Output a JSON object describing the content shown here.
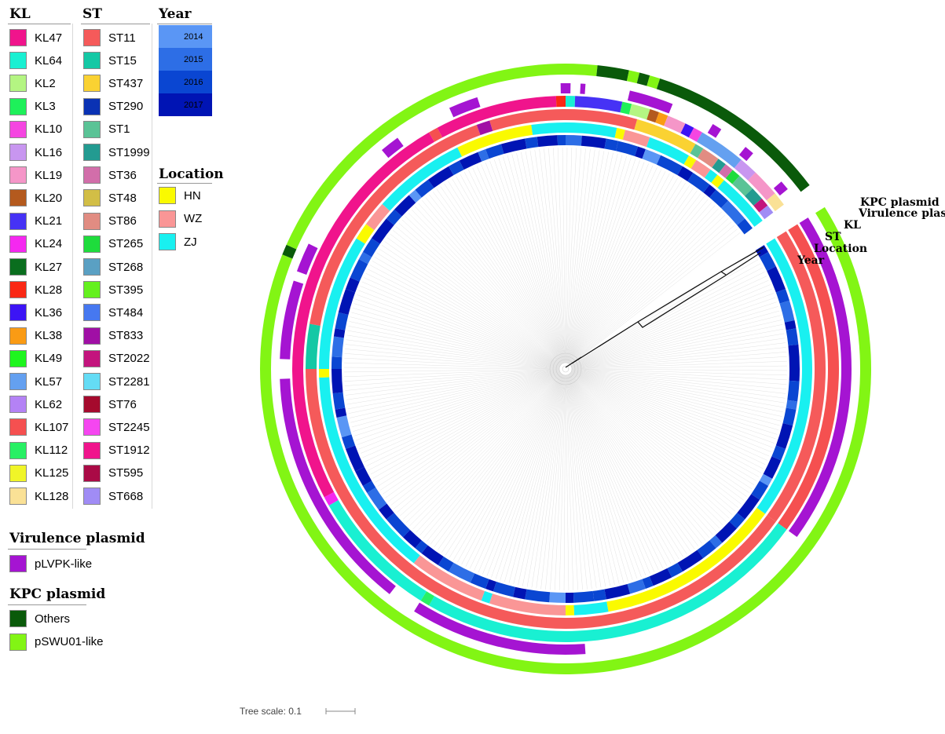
{
  "legend": {
    "kl": {
      "title": "KL",
      "items": [
        {
          "label": "KL47",
          "color": "#f0148c"
        },
        {
          "label": "KL64",
          "color": "#19f0d2"
        },
        {
          "label": "KL2",
          "color": "#b4f582"
        },
        {
          "label": "KL3",
          "color": "#1ef05a"
        },
        {
          "label": "KL10",
          "color": "#f546e1"
        },
        {
          "label": "KL16",
          "color": "#c896f0"
        },
        {
          "label": "KL19",
          "color": "#f596c8"
        },
        {
          "label": "KL20",
          "color": "#b45a1e"
        },
        {
          "label": "KL21",
          "color": "#4632f5"
        },
        {
          "label": "KL24",
          "color": "#f528f0"
        },
        {
          "label": "KL27",
          "color": "#0a6e1e"
        },
        {
          "label": "KL28",
          "color": "#fa2814"
        },
        {
          "label": "KL36",
          "color": "#3c14f5"
        },
        {
          "label": "KL38",
          "color": "#fa9b14"
        },
        {
          "label": "KL49",
          "color": "#1ef51e"
        },
        {
          "label": "KL57",
          "color": "#64a0f0"
        },
        {
          "label": "KL62",
          "color": "#b482f5"
        },
        {
          "label": "KL107",
          "color": "#f55050"
        },
        {
          "label": "KL112",
          "color": "#28f064"
        },
        {
          "label": "KL125",
          "color": "#f0f528"
        },
        {
          "label": "KL128",
          "color": "#fae196"
        }
      ]
    },
    "st": {
      "title": "ST",
      "items": [
        {
          "label": "ST11",
          "color": "#f55a5a"
        },
        {
          "label": "ST15",
          "color": "#14c8a5"
        },
        {
          "label": "ST437",
          "color": "#fad232"
        },
        {
          "label": "ST290",
          "color": "#0a32b4"
        },
        {
          "label": "ST1",
          "color": "#5ac396"
        },
        {
          "label": "ST1999",
          "color": "#239b91"
        },
        {
          "label": "ST36",
          "color": "#d26eaa"
        },
        {
          "label": "ST48",
          "color": "#d2be46"
        },
        {
          "label": "ST86",
          "color": "#e18c82"
        },
        {
          "label": "ST265",
          "color": "#1edc3c"
        },
        {
          "label": "ST268",
          "color": "#5aa0c3"
        },
        {
          "label": "ST395",
          "color": "#64f01e"
        },
        {
          "label": "ST484",
          "color": "#4678f0"
        },
        {
          "label": "ST833",
          "color": "#a00fa5"
        },
        {
          "label": "ST2022",
          "color": "#c3147d"
        },
        {
          "label": "ST2281",
          "color": "#64dcf5"
        },
        {
          "label": "ST76",
          "color": "#a50a2d"
        },
        {
          "label": "ST2245",
          "color": "#f546f0"
        },
        {
          "label": "ST1912",
          "color": "#f0148c"
        },
        {
          "label": "ST595",
          "color": "#aa0a46"
        },
        {
          "label": "ST668",
          "color": "#a08cf5"
        }
      ]
    },
    "year": {
      "title": "Year",
      "items": [
        {
          "label": "2014",
          "color": "#5a96f5"
        },
        {
          "label": "2015",
          "color": "#2d6ee6"
        },
        {
          "label": "2016",
          "color": "#0a46d2"
        },
        {
          "label": "2017",
          "color": "#0014b4"
        }
      ]
    },
    "location": {
      "title": "Location",
      "items": [
        {
          "label": "HN",
          "color": "#fafa00"
        },
        {
          "label": "WZ",
          "color": "#fa9696"
        },
        {
          "label": "ZJ",
          "color": "#19f0f0"
        }
      ]
    },
    "virulence": {
      "title": "Virulence plasmid",
      "items": [
        {
          "label": "pLVPK-like",
          "color": "#a514d2"
        }
      ]
    },
    "kpc": {
      "title": "KPC plasmid",
      "items": [
        {
          "label": "Others",
          "color": "#0a5a0a"
        },
        {
          "label": "pSWU01-like",
          "color": "#82f514"
        }
      ]
    }
  },
  "rings": {
    "labels": [
      "KPC plasmid",
      "Virulence plasmid",
      "KL",
      "ST",
      "Location",
      "Year"
    ]
  },
  "tree": {
    "scale_label": "Tree scale: 0.1"
  }
}
